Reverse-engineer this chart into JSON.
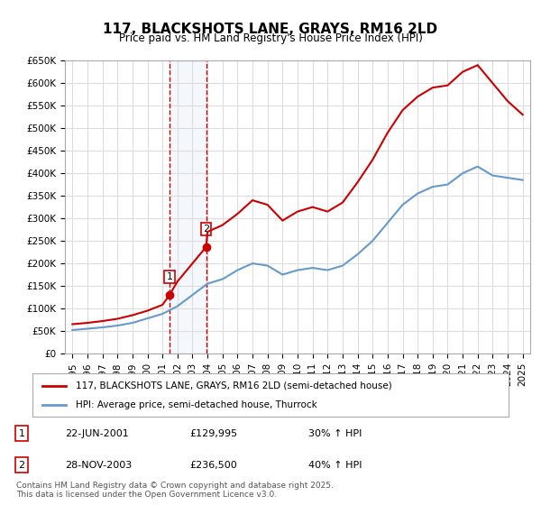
{
  "title": "117, BLACKSHOTS LANE, GRAYS, RM16 2LD",
  "subtitle": "Price paid vs. HM Land Registry's House Price Index (HPI)",
  "xlabel": "",
  "ylabel": "",
  "ylim": [
    0,
    650000
  ],
  "yticks": [
    0,
    50000,
    100000,
    150000,
    200000,
    250000,
    300000,
    350000,
    400000,
    450000,
    500000,
    550000,
    600000,
    650000
  ],
  "ytick_labels": [
    "£0",
    "£50K",
    "£100K",
    "£150K",
    "£200K",
    "£250K",
    "£300K",
    "£350K",
    "£400K",
    "£450K",
    "£500K",
    "£550K",
    "£600K",
    "£650K"
  ],
  "background_color": "#ffffff",
  "grid_color": "#dddddd",
  "transactions": [
    {
      "date_num": 2001.47,
      "price": 129995,
      "label": "1",
      "hpi_pct": "30% ↑ HPI",
      "date_str": "22-JUN-2001",
      "price_str": "£129,995"
    },
    {
      "date_num": 2003.91,
      "price": 236500,
      "label": "2",
      "hpi_pct": "40% ↑ HPI",
      "date_str": "28-NOV-2003",
      "price_str": "£236,500"
    }
  ],
  "hpi_line_color": "#6699cc",
  "property_line_color": "#cc0000",
  "vline_color": "#cc0000",
  "vline_style": "dashed",
  "highlight_fill": "#dce8f7",
  "legend_box_color": "#cc0000",
  "footer_text": "Contains HM Land Registry data © Crown copyright and database right 2025.\nThis data is licensed under the Open Government Licence v3.0.",
  "hpi_years": [
    1995,
    1996,
    1997,
    1998,
    1999,
    2000,
    2001,
    2002,
    2003,
    2004,
    2005,
    2006,
    2007,
    2008,
    2009,
    2010,
    2011,
    2012,
    2013,
    2014,
    2015,
    2016,
    2017,
    2018,
    2019,
    2020,
    2021,
    2022,
    2023,
    2024,
    2025
  ],
  "hpi_values": [
    52000,
    55000,
    58000,
    62000,
    68000,
    78000,
    88000,
    105000,
    130000,
    155000,
    165000,
    185000,
    200000,
    195000,
    175000,
    185000,
    190000,
    185000,
    195000,
    220000,
    250000,
    290000,
    330000,
    355000,
    370000,
    375000,
    400000,
    415000,
    395000,
    390000,
    385000
  ],
  "prop_years": [
    1995,
    1996,
    1997,
    1998,
    1999,
    2000,
    2001,
    2001.47,
    2002,
    2003,
    2003.91,
    2004,
    2005,
    2006,
    2007,
    2008,
    2009,
    2010,
    2011,
    2012,
    2013,
    2014,
    2015,
    2016,
    2017,
    2018,
    2019,
    2020,
    2021,
    2022,
    2023,
    2024,
    2025
  ],
  "prop_values": [
    65000,
    68000,
    72000,
    77000,
    85000,
    95000,
    108000,
    129995,
    160000,
    200000,
    236500,
    270000,
    285000,
    310000,
    340000,
    330000,
    295000,
    315000,
    325000,
    315000,
    335000,
    380000,
    430000,
    490000,
    540000,
    570000,
    590000,
    595000,
    625000,
    640000,
    600000,
    560000,
    530000
  ]
}
